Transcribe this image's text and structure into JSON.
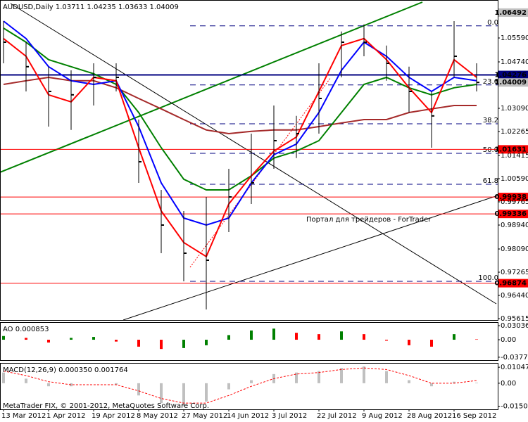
{
  "chart_data": [
    {
      "type": "candlestick",
      "title": "AUDUSD,Daily  1.03711 1.04235 1.03633 1.04009",
      "annotation": "Портал для трейдеров - ForTrader",
      "categories": [
        "13 Mar 2012",
        null,
        "1 Apr 2012",
        null,
        "19 Apr 2012",
        null,
        "8 May 2012",
        null,
        "27 May 2012",
        null,
        "14 Jun 2012",
        null,
        "3 Jul 2012",
        null,
        "22 Jul 2012",
        null,
        "9 Aug 2012",
        null,
        "28 Aug 2012",
        null,
        "16 Sep 2012",
        null
      ],
      "high": [
        1.0619,
        1.0544,
        1.0457,
        1.0444,
        1.0469,
        1.0469,
        1.0269,
        1.0019,
        0.9944,
        0.9994,
        1.0094,
        1.0219,
        1.0319,
        1.0282,
        1.0469,
        1.0582,
        1.0607,
        1.0532,
        1.0457,
        1.0369,
        1.0619,
        1.0469
      ],
      "low": [
        1.0469,
        1.0369,
        1.0244,
        1.0232,
        1.0319,
        1.0369,
        1.0044,
        0.9794,
        0.9694,
        0.9594,
        0.9869,
        0.9969,
        1.0094,
        1.0132,
        1.0219,
        1.0419,
        1.0494,
        1.0407,
        1.0294,
        1.0169,
        1.0419,
        1.0369
      ],
      "close": [
        1.0544,
        1.0457,
        1.0369,
        1.0357,
        1.0419,
        1.0419,
        1.0119,
        0.9894,
        0.9794,
        0.9769,
        0.9994,
        1.0044,
        1.0194,
        1.0219,
        1.0344,
        1.0544,
        1.0544,
        1.0469,
        1.0369,
        1.0282,
        1.0494,
        1.0401
      ],
      "color": "#000000",
      "moving_averages": [
        {
          "color": "#a52a2a",
          "values": [
            1.0394,
            1.0407,
            1.0419,
            1.0407,
            1.0407,
            1.0382,
            1.0344,
            1.0307,
            1.0269,
            1.0232,
            1.0219,
            1.0227,
            1.0232,
            1.0232,
            1.0244,
            1.0257,
            1.0269,
            1.0269,
            1.0294,
            1.0307,
            1.0319,
            1.0319
          ]
        },
        {
          "color": "#008000",
          "values": [
            1.0594,
            1.0544,
            1.0482,
            1.0457,
            1.0432,
            1.0394,
            1.0294,
            1.0169,
            1.0057,
            1.0019,
            1.0019,
            1.0069,
            1.0132,
            1.0157,
            1.0194,
            1.0294,
            1.0394,
            1.0419,
            1.0382,
            1.0357,
            1.0382,
            1.0394
          ]
        },
        {
          "color": "#0000ff",
          "values": [
            1.0619,
            1.0557,
            1.0457,
            1.0407,
            1.0394,
            1.0407,
            1.0244,
            1.0044,
            0.9919,
            0.9894,
            0.9919,
            1.0044,
            1.0144,
            1.0182,
            1.0294,
            1.0444,
            1.0544,
            1.0494,
            1.0419,
            1.0369,
            1.0419,
            1.0407
          ]
        },
        {
          "color": "#ff0000",
          "values": [
            1.0557,
            1.0494,
            1.0357,
            1.0332,
            1.0419,
            1.0407,
            1.0169,
            0.9944,
            0.9832,
            0.9782,
            0.9969,
            1.0069,
            1.0157,
            1.0207,
            1.0369,
            1.0532,
            1.0557,
            1.0482,
            1.0382,
            1.0294,
            1.0482,
            1.0419
          ]
        }
      ],
      "ylim": [
        0.95565,
        1.0694
      ],
      "yticks": [
        {
          "value": 1.0559,
          "label": "1.05590"
        },
        {
          "value": 1.0474,
          "label": "1.04740"
        },
        {
          "value": 1.0309,
          "label": "1.03090"
        },
        1.02265,
        1.01415,
        {
          "value": 1.0059,
          "label": "1.00590"
        },
        0.99765,
        {
          "value": 0.9894,
          "label": "0.98940"
        },
        {
          "value": 0.9809,
          "label": "0.98090"
        },
        0.97265,
        {
          "value": 0.9644,
          "label": "0.96440"
        },
        0.95615
      ],
      "levels": [
        {
          "value": 1.06492,
          "label": "1.06492",
          "color": "#c0c0c0",
          "line": false
        },
        {
          "value": 1.04276,
          "label": "1.04276",
          "color": "#000080",
          "line": true
        },
        {
          "value": 1.04009,
          "label": "1.04009",
          "color": "#c0c0c0",
          "line": false
        },
        {
          "value": 1.01631,
          "label": "1.01631",
          "color": "#ff0000",
          "line": true
        },
        {
          "value": 0.99938,
          "label": "0.99938",
          "color": "#ff0000",
          "line": true
        },
        {
          "value": 0.99336,
          "label": "0.99336",
          "color": "#ff0000",
          "line": true
        },
        {
          "value": 0.96874,
          "label": "0.96874",
          "color": "#ff0000",
          "line": true
        }
      ],
      "fib_levels": [
        {
          "value": 1.0602,
          "label": "0.0"
        },
        {
          "value": 1.0392,
          "label": "23.6"
        },
        {
          "value": 1.0254,
          "label": "38.2"
        },
        {
          "value": 1.0149,
          "label": "50.0"
        },
        {
          "value": 1.0039,
          "label": "61.8"
        },
        {
          "value": 0.9694,
          "label": "100.0"
        }
      ]
    },
    {
      "type": "oscillator",
      "title": "AO 0.000853",
      "values": [
        0.008,
        0.004,
        -0.006,
        0.004,
        0.006,
        -0.004,
        -0.015,
        -0.02,
        -0.018,
        -0.012,
        0.01,
        0.02,
        0.024,
        0.015,
        0.012,
        0.018,
        0.012,
        -0.002,
        -0.012,
        -0.015,
        0.012,
        0.000853
      ],
      "color_up": "#008000",
      "color_down": "#ff0000",
      "ylim": [
        -0.044,
        0.038
      ],
      "yticks": [
        0.030363,
        {
          "value": 0,
          "label": "0.00"
        },
        -0.03775
      ]
    },
    {
      "type": "macd",
      "title": "MACD(12,26,9) 0.000350 0.001764",
      "values": [
        0.007,
        0.003,
        -0.002,
        -0.002,
        0.0,
        -0.001,
        -0.008,
        -0.013,
        -0.015,
        -0.012,
        -0.004,
        0.002,
        0.006,
        0.007,
        0.008,
        0.01,
        0.011,
        0.008,
        0.002,
        -0.002,
        0.001,
        0.00035
      ],
      "signal": [
        0.008,
        0.005,
        0.001,
        -0.001,
        -0.001,
        -0.001,
        -0.005,
        -0.01,
        -0.013,
        -0.013,
        -0.008,
        -0.002,
        0.003,
        0.006,
        0.007,
        0.009,
        0.01,
        0.009,
        0.005,
        0.0,
        0.0,
        0.001764
      ],
      "color": "#c0c0c0",
      "signal_color": "#ff0000",
      "ylim": [
        -0.0171,
        0.0133
      ],
      "yticks": [
        0.010474,
        {
          "value": 0,
          "label": "0.00"
        },
        -0.01505
      ],
      "footer": "MetaTrader FIX, © 2001-2012, MetaQuotes Software Corp."
    }
  ]
}
